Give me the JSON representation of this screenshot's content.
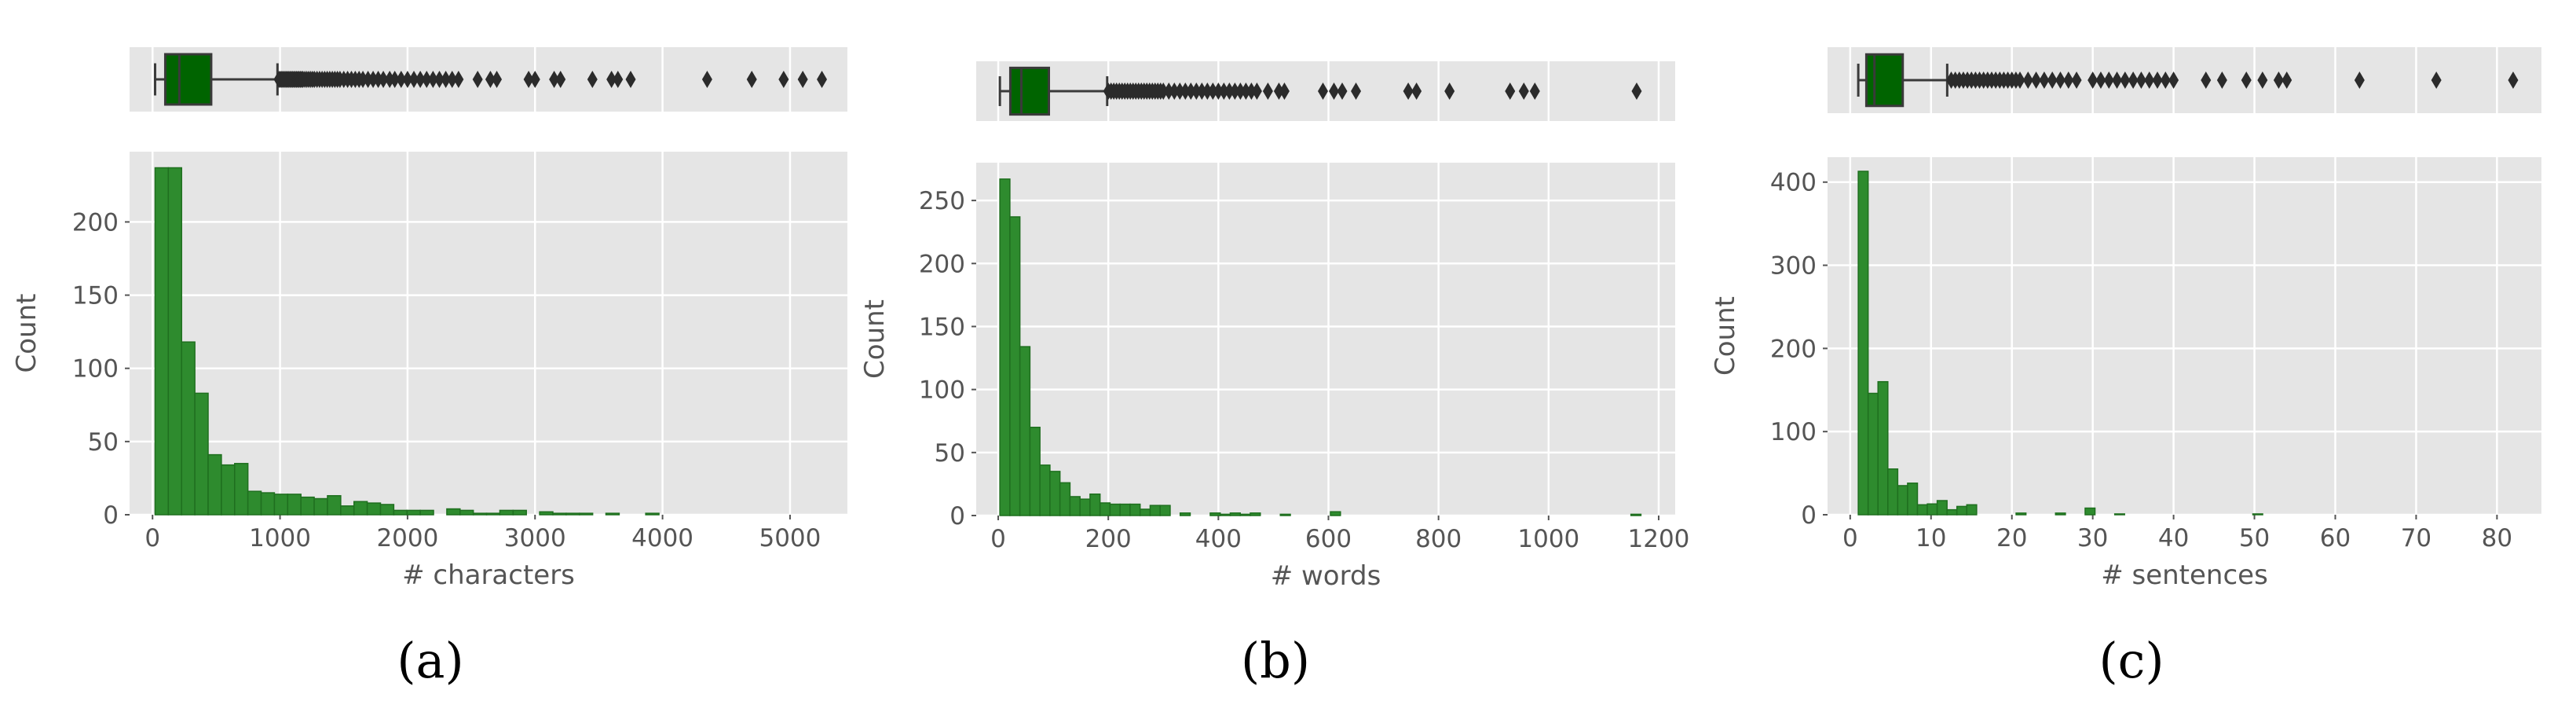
{
  "colors": {
    "panel_bg": "#e5e5e5",
    "grid": "#ffffff",
    "bar_fill": "#2e8b2e",
    "bar_edge": "#1f6f1f",
    "box_fill": "#006400",
    "text": "#555555"
  },
  "chart_data": [
    {
      "panel": "(a)",
      "type": "bar",
      "title": "",
      "xlabel": "# characters",
      "ylabel": "Count",
      "grid": true,
      "xlim": [
        -180,
        5450
      ],
      "ylim": [
        0,
        248
      ],
      "xticks": [
        0,
        1000,
        2000,
        3000,
        4000,
        5000
      ],
      "yticks": [
        0,
        50,
        100,
        150,
        200
      ],
      "bin_start": 20,
      "bin_width": 104,
      "values": [
        237,
        237,
        118,
        83,
        41,
        34,
        35,
        16,
        15,
        14,
        14,
        12,
        11,
        13,
        6,
        9,
        8,
        7,
        3,
        3,
        3,
        0,
        4,
        3,
        1,
        1,
        3,
        3,
        0,
        2,
        1,
        1,
        1,
        0,
        1,
        0,
        0,
        1,
        0,
        0,
        0,
        0,
        0,
        0,
        0,
        0,
        0,
        0,
        0,
        0
      ],
      "box": {
        "whisker_low": 20,
        "q1": 100,
        "median": 210,
        "q3": 460,
        "whisker_high": 980
      },
      "outliers": [
        990,
        1000,
        1010,
        1020,
        1030,
        1040,
        1050,
        1060,
        1070,
        1080,
        1090,
        1100,
        1110,
        1120,
        1130,
        1140,
        1150,
        1160,
        1170,
        1180,
        1195,
        1210,
        1225,
        1240,
        1255,
        1270,
        1290,
        1310,
        1330,
        1350,
        1370,
        1390,
        1410,
        1430,
        1450,
        1470,
        1500,
        1530,
        1560,
        1590,
        1620,
        1650,
        1690,
        1730,
        1770,
        1810,
        1860,
        1900,
        1950,
        2000,
        2050,
        2100,
        2150,
        2200,
        2250,
        2300,
        2350,
        2400,
        2550,
        2650,
        2700,
        2950,
        3000,
        3150,
        3200,
        3450,
        3600,
        3650,
        3750,
        4350,
        4700,
        4950,
        5100,
        5250
      ]
    },
    {
      "panel": "(b)",
      "type": "bar",
      "title": "",
      "xlabel": "# words",
      "ylabel": "Count",
      "grid": true,
      "xlim": [
        -40,
        1230
      ],
      "ylim": [
        0,
        280
      ],
      "xticks": [
        0,
        200,
        400,
        600,
        800,
        1000,
        1200
      ],
      "yticks": [
        0,
        50,
        100,
        150,
        200,
        250
      ],
      "bin_start": 3,
      "bin_width": 18.2,
      "values": [
        267,
        237,
        134,
        70,
        40,
        35,
        26,
        15,
        13,
        17,
        10,
        9,
        9,
        9,
        5,
        8,
        8,
        0,
        2,
        0,
        0,
        2,
        1,
        2,
        1,
        2,
        0,
        0,
        1,
        0,
        0,
        0,
        0,
        3,
        0,
        0,
        0,
        0,
        0,
        0,
        0,
        0,
        0,
        0,
        0,
        0,
        0,
        0,
        0,
        0,
        0,
        0,
        0,
        0,
        0,
        0,
        0,
        0,
        0,
        0,
        0,
        0,
        0,
        1
      ],
      "box": {
        "whisker_low": 3,
        "q1": 22,
        "median": 42,
        "q3": 92,
        "whisker_high": 198
      },
      "outliers": [
        200,
        205,
        210,
        215,
        220,
        225,
        230,
        235,
        240,
        245,
        250,
        255,
        260,
        265,
        270,
        275,
        280,
        285,
        290,
        295,
        300,
        310,
        320,
        330,
        340,
        350,
        360,
        370,
        380,
        390,
        400,
        410,
        420,
        430,
        440,
        450,
        460,
        470,
        490,
        510,
        520,
        590,
        610,
        625,
        650,
        745,
        760,
        820,
        930,
        955,
        975,
        1160
      ]
    },
    {
      "panel": "(c)",
      "type": "bar",
      "title": "",
      "xlabel": "# sentences",
      "ylabel": "Count",
      "grid": true,
      "xlim": [
        -2.8,
        85.5
      ],
      "ylim": [
        0,
        430
      ],
      "xticks": [
        0,
        10,
        20,
        30,
        40,
        50,
        60,
        70,
        80
      ],
      "yticks": [
        0,
        100,
        200,
        300,
        400
      ],
      "bin_start": 1,
      "bin_width": 1.22,
      "values": [
        413,
        146,
        160,
        55,
        35,
        38,
        12,
        13,
        17,
        6,
        10,
        12,
        0,
        0,
        0,
        0,
        2,
        0,
        0,
        0,
        2,
        0,
        0,
        8,
        0,
        0,
        1,
        0,
        0,
        0,
        0,
        0,
        0,
        0,
        0,
        0,
        0,
        0,
        0,
        0,
        1
      ],
      "box": {
        "whisker_low": 1,
        "q1": 2,
        "median": 3,
        "q3": 6.5,
        "whisker_high": 12
      },
      "outliers": [
        12.5,
        13,
        13.5,
        14,
        14.5,
        15,
        15.5,
        16,
        16.5,
        17,
        17.5,
        18,
        18.5,
        19,
        19.5,
        20,
        20.5,
        21,
        22,
        23,
        24,
        25,
        26,
        27,
        28,
        30,
        31,
        32,
        33,
        34,
        35,
        36,
        37,
        38,
        39,
        40,
        44,
        46,
        49,
        51,
        53,
        54,
        63,
        72.5,
        82
      ]
    }
  ]
}
